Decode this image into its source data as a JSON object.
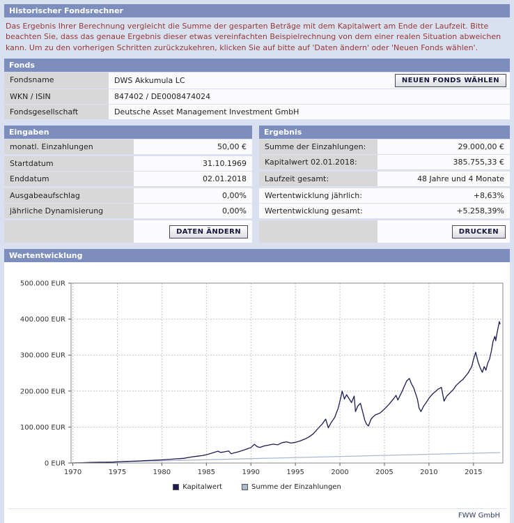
{
  "colors": {
    "page_bg": "#d9e0f0",
    "header_bg": "#7d8dbe",
    "intro_text": "#993734",
    "label_cell": "#d8d8d8",
    "value_cell": "#fbfbfd",
    "accent_navy": "#16163f"
  },
  "page": {
    "title": "Historischer Fondsrechner",
    "intro": "Das Ergebnis Ihrer Berechnung vergleicht die Summe der gesparten Beträge mit dem Kapitalwert am Ende der Laufzeit. Bitte beachten Sie, dass das genaue Ergebnis dieser etwas vereinfachten Beispielrechnung von dem einer realen Situation abweichen kann. Um zu den vorherigen Schritten zurückzukehren, klicken Sie auf bitte auf 'Daten ändern' oder 'Neuen Fonds wählen'."
  },
  "fonds": {
    "title": "Fonds",
    "new_fund_button": "NEUEN FONDS WÄHLEN",
    "rows": [
      {
        "label": "Fondsname",
        "value": "DWS Akkumula LC"
      },
      {
        "label": "WKN / ISIN",
        "value": "847402 / DE0008474024"
      },
      {
        "label": "Fondsgesellschaft",
        "value": "Deutsche Asset Management Investment GmbH"
      }
    ]
  },
  "eingaben": {
    "title": "Eingaben",
    "change_button": "DATEN ÄNDERN",
    "rows": [
      {
        "label": "monatl. Einzahlungen",
        "value": "50,00 €"
      },
      {
        "label": "Startdatum",
        "value": "31.10.1969"
      },
      {
        "label": "Enddatum",
        "value": "02.01.2018"
      },
      {
        "label": "Ausgabeaufschlag",
        "value": "0,00%"
      },
      {
        "label": "jährliche Dynamisierung",
        "value": "0,00%"
      }
    ]
  },
  "ergebnis": {
    "title": "Ergebnis",
    "print_button": "DRUCKEN",
    "rows": [
      {
        "label": "Summe der Einzahlungen:",
        "value": "29.000,00 €"
      },
      {
        "label": "Kapitalwert 02.01.2018:",
        "value": "385.755,33 €"
      },
      {
        "label": "Laufzeit gesamt:",
        "value": "48 Jahre und 4 Monate"
      },
      {
        "label": "Wertentwicklung jährlich:",
        "value": "+8,63%"
      },
      {
        "label": "Wertentwicklung gesamt:",
        "value": "+5.258,39%"
      }
    ]
  },
  "chart": {
    "title": "Wertentwicklung",
    "footer": "FWW GmbH"
  },
  "chart_data": {
    "type": "line",
    "title": "Wertentwicklung",
    "xlim": [
      1969.8,
      2018.3
    ],
    "ylim": [
      0,
      500000
    ],
    "grid": true,
    "legend_position": "bottom",
    "x_ticks": [
      1970,
      1975,
      1980,
      1985,
      1990,
      1995,
      2000,
      2005,
      2010,
      2015
    ],
    "y_ticks": [
      {
        "value": 0,
        "label": "0 EUR"
      },
      {
        "value": 100000,
        "label": "100.000 EUR"
      },
      {
        "value": 200000,
        "label": "200.000 EUR"
      },
      {
        "value": 300000,
        "label": "300.000 EUR"
      },
      {
        "value": 400000,
        "label": "400.000 EUR"
      },
      {
        "value": 500000,
        "label": "500.000 EUR"
      }
    ],
    "series": [
      {
        "name": "Kapitalwert",
        "color": "#1b1b52",
        "points": [
          [
            1969.83,
            50
          ],
          [
            1970.5,
            400
          ],
          [
            1971,
            800
          ],
          [
            1971.5,
            1100
          ],
          [
            1972,
            1600
          ],
          [
            1972.5,
            2000
          ],
          [
            1973,
            2200
          ],
          [
            1973.5,
            2100
          ],
          [
            1974,
            2300
          ],
          [
            1974.5,
            2600
          ],
          [
            1975,
            3300
          ],
          [
            1975.5,
            3900
          ],
          [
            1976,
            4400
          ],
          [
            1976.5,
            4800
          ],
          [
            1977,
            5300
          ],
          [
            1977.5,
            5800
          ],
          [
            1978,
            6500
          ],
          [
            1978.5,
            7000
          ],
          [
            1979,
            7600
          ],
          [
            1979.5,
            8100
          ],
          [
            1980,
            8800
          ],
          [
            1980.5,
            9600
          ],
          [
            1981,
            10500
          ],
          [
            1981.5,
            11600
          ],
          [
            1982,
            12300
          ],
          [
            1982.5,
            13200
          ],
          [
            1983,
            15500
          ],
          [
            1983.5,
            17500
          ],
          [
            1984,
            19000
          ],
          [
            1984.5,
            20500
          ],
          [
            1985,
            23000
          ],
          [
            1985.5,
            26500
          ],
          [
            1986,
            30500
          ],
          [
            1986.3,
            33000
          ],
          [
            1986.6,
            29500
          ],
          [
            1987,
            31000
          ],
          [
            1987.5,
            33500
          ],
          [
            1987.8,
            25500
          ],
          [
            1988,
            27500
          ],
          [
            1988.5,
            30500
          ],
          [
            1989,
            34500
          ],
          [
            1989.5,
            38500
          ],
          [
            1990,
            43000
          ],
          [
            1990.4,
            52000
          ],
          [
            1990.7,
            45500
          ],
          [
            1991,
            43500
          ],
          [
            1991.5,
            47500
          ],
          [
            1992,
            50000
          ],
          [
            1992.5,
            52500
          ],
          [
            1993,
            50500
          ],
          [
            1993.5,
            56500
          ],
          [
            1994,
            59000
          ],
          [
            1994.5,
            55500
          ],
          [
            1995,
            57500
          ],
          [
            1995.5,
            61000
          ],
          [
            1996,
            66000
          ],
          [
            1996.5,
            72000
          ],
          [
            1997,
            81000
          ],
          [
            1997.5,
            95000
          ],
          [
            1997.8,
            103000
          ],
          [
            1998,
            108000
          ],
          [
            1998.4,
            122000
          ],
          [
            1998.7,
            98000
          ],
          [
            1999,
            112000
          ],
          [
            1999.4,
            126000
          ],
          [
            1999.8,
            152000
          ],
          [
            2000.1,
            182000
          ],
          [
            2000.25,
            200000
          ],
          [
            2000.5,
            178000
          ],
          [
            2000.75,
            190000
          ],
          [
            2001,
            180000
          ],
          [
            2001.3,
            168000
          ],
          [
            2001.6,
            186000
          ],
          [
            2001.75,
            143000
          ],
          [
            2002,
            158000
          ],
          [
            2002.3,
            166000
          ],
          [
            2002.6,
            138000
          ],
          [
            2002.8,
            118000
          ],
          [
            2003,
            108000
          ],
          [
            2003.2,
            103000
          ],
          [
            2003.5,
            122000
          ],
          [
            2003.8,
            130000
          ],
          [
            2004,
            134000
          ],
          [
            2004.5,
            139000
          ],
          [
            2005,
            150000
          ],
          [
            2005.5,
            163000
          ],
          [
            2006,
            178000
          ],
          [
            2006.3,
            188000
          ],
          [
            2006.5,
            175000
          ],
          [
            2007,
            200000
          ],
          [
            2007.5,
            228000
          ],
          [
            2007.8,
            235000
          ],
          [
            2008,
            222000
          ],
          [
            2008.3,
            208000
          ],
          [
            2008.7,
            178000
          ],
          [
            2008.9,
            152000
          ],
          [
            2009.1,
            143000
          ],
          [
            2009.4,
            158000
          ],
          [
            2009.8,
            172000
          ],
          [
            2010,
            180000
          ],
          [
            2010.4,
            192000
          ],
          [
            2010.8,
            200000
          ],
          [
            2011,
            205000
          ],
          [
            2011.4,
            210000
          ],
          [
            2011.7,
            172000
          ],
          [
            2012,
            186000
          ],
          [
            2012.4,
            196000
          ],
          [
            2012.8,
            206000
          ],
          [
            2013,
            214000
          ],
          [
            2013.4,
            224000
          ],
          [
            2013.8,
            232000
          ],
          [
            2014,
            238000
          ],
          [
            2014.4,
            250000
          ],
          [
            2014.8,
            268000
          ],
          [
            2015,
            288000
          ],
          [
            2015.25,
            308000
          ],
          [
            2015.5,
            282000
          ],
          [
            2015.75,
            265000
          ],
          [
            2016,
            252000
          ],
          [
            2016.2,
            268000
          ],
          [
            2016.4,
            258000
          ],
          [
            2016.6,
            278000
          ],
          [
            2016.8,
            288000
          ],
          [
            2017,
            310000
          ],
          [
            2017.2,
            338000
          ],
          [
            2017.4,
            352000
          ],
          [
            2017.5,
            340000
          ],
          [
            2017.65,
            362000
          ],
          [
            2017.8,
            380000
          ],
          [
            2017.9,
            393000
          ],
          [
            2018,
            385755
          ]
        ]
      },
      {
        "name": "Summe der Einzahlungen",
        "color": "#a9bad2",
        "points": [
          [
            1969.83,
            0
          ],
          [
            2018,
            29000
          ]
        ]
      }
    ]
  }
}
